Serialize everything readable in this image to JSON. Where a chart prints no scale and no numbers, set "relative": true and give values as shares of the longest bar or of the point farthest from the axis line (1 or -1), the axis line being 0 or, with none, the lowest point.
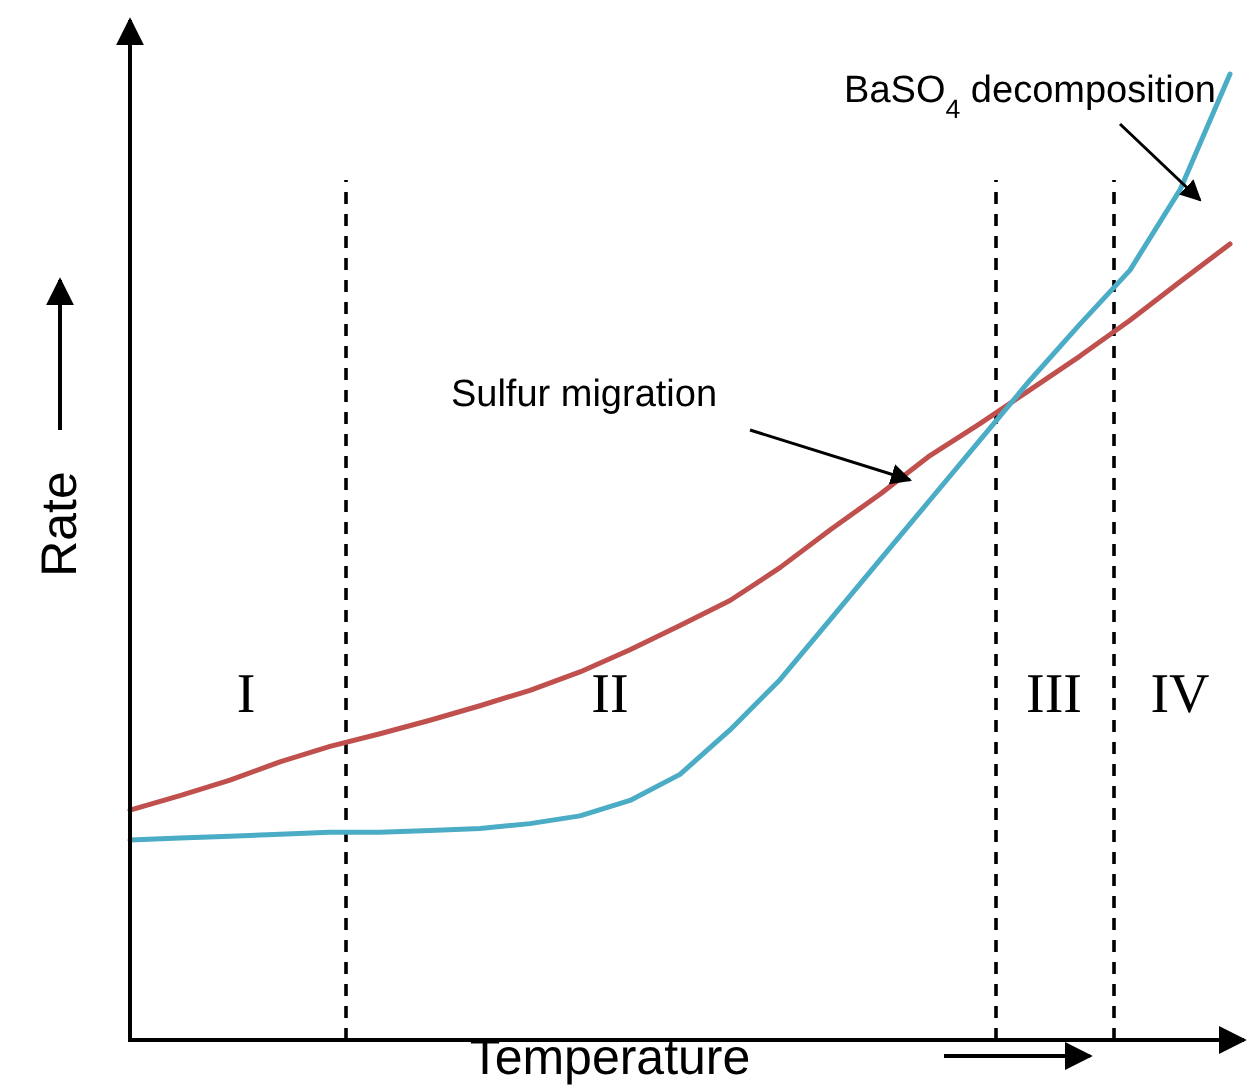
{
  "chart_data": {
    "type": "line",
    "relative": true,
    "xlabel": "Temperature",
    "ylabel": "Rate",
    "categories": [
      null,
      null,
      null,
      null,
      null,
      null,
      null,
      null,
      null,
      null,
      null,
      null,
      null,
      null,
      null,
      null,
      null,
      null,
      null,
      null,
      null,
      null,
      null
    ],
    "marker": "none",
    "line_style": "solid",
    "series": [
      {
        "color": "#c0504d",
        "values": [
          0.238,
          0.253,
          0.269,
          0.288,
          0.304,
          0.317,
          0.331,
          0.346,
          0.362,
          0.381,
          0.404,
          0.429,
          0.455,
          0.489,
          0.528,
          0.565,
          0.605,
          0.638,
          0.673,
          0.708,
          0.745,
          0.785,
          0.824
        ]
      },
      {
        "color": "#4bacc6",
        "values": [
          0.207,
          0.209,
          0.211,
          0.213,
          0.215,
          0.215,
          0.217,
          0.219,
          0.224,
          0.232,
          0.248,
          0.275,
          0.321,
          0.373,
          0.435,
          0.497,
          0.559,
          0.621,
          0.683,
          0.741,
          0.797,
          0.88,
          1
        ]
      }
    ],
    "annotations": [
      "Sulfur migration",
      "BaSO$_{4}$ decomposition",
      "I",
      "II",
      "III",
      "IV"
    ]
  }
}
